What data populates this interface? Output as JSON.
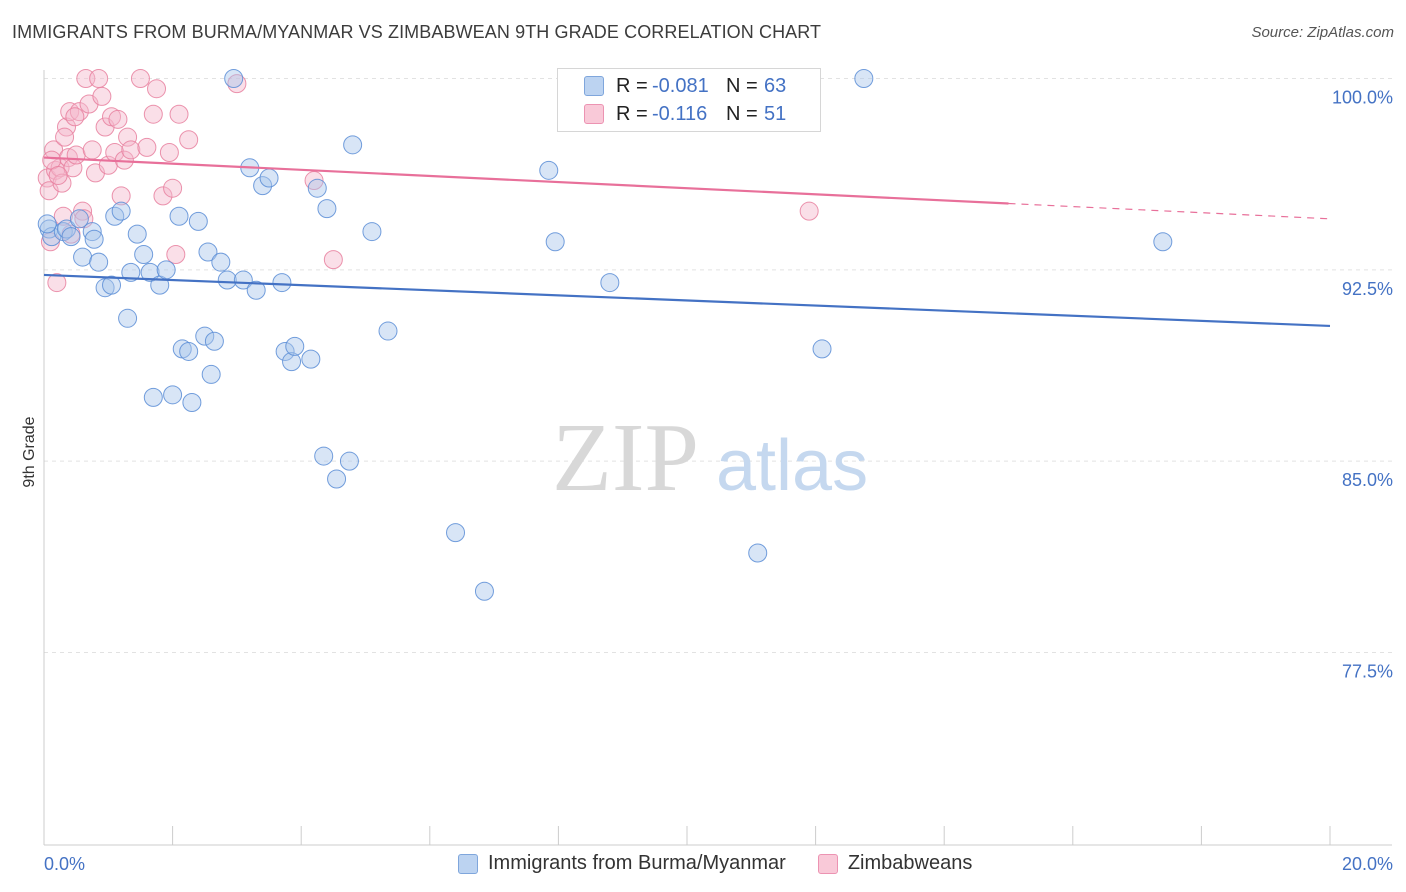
{
  "title": "IMMIGRANTS FROM BURMA/MYANMAR VS ZIMBABWEAN 9TH GRADE CORRELATION CHART",
  "source": "Source: ZipAtlas.com",
  "watermark": {
    "zip": "ZIP",
    "atlas": "atlas"
  },
  "colors": {
    "blue": "#4472c4",
    "blue_fill": "#a9c6ec",
    "pink": "#e8709a",
    "pink_fill": "#f5b8cc"
  },
  "legend": {
    "r_label": "R =",
    "n_label": "N =",
    "series": [
      {
        "r": "-0.081",
        "n": "63"
      },
      {
        "r": "-0.116",
        "n": "51"
      }
    ]
  },
  "chart_data": {
    "type": "scatter",
    "title": "IMMIGRANTS FROM BURMA/MYANMAR VS ZIMBABWEAN 9TH GRADE CORRELATION CHART",
    "xlabel": "",
    "ylabel": "9th Grade",
    "xlim": [
      0.0,
      20.0
    ],
    "ylim": [
      70.0,
      101.0
    ],
    "x_tick_labels": [
      "0.0%",
      "20.0%"
    ],
    "y_ticks": [
      77.5,
      85.0,
      92.5,
      100.0
    ],
    "y_tick_labels": [
      "77.5%",
      "85.0%",
      "92.5%",
      "100.0%"
    ],
    "grid": true,
    "series": [
      {
        "name": "Immigrants from Burma/Myanmar",
        "color": "blue",
        "trend": {
          "x": [
            0.0,
            20.0
          ],
          "y": [
            92.3,
            90.3
          ],
          "dashed_from": null
        },
        "points": [
          [
            0.08,
            94.1
          ],
          [
            0.12,
            93.8
          ],
          [
            0.3,
            94.0
          ],
          [
            0.35,
            94.1
          ],
          [
            0.42,
            93.8
          ],
          [
            0.55,
            94.5
          ],
          [
            0.6,
            93.0
          ],
          [
            0.75,
            94.0
          ],
          [
            0.78,
            93.7
          ],
          [
            0.85,
            92.8
          ],
          [
            0.95,
            91.8
          ],
          [
            1.05,
            91.9
          ],
          [
            1.1,
            94.6
          ],
          [
            1.2,
            94.8
          ],
          [
            1.3,
            90.6
          ],
          [
            1.35,
            92.4
          ],
          [
            1.45,
            93.9
          ],
          [
            1.55,
            93.1
          ],
          [
            1.65,
            92.4
          ],
          [
            1.7,
            87.5
          ],
          [
            1.8,
            91.9
          ],
          [
            1.9,
            92.5
          ],
          [
            2.0,
            87.6
          ],
          [
            2.1,
            94.6
          ],
          [
            2.15,
            89.4
          ],
          [
            2.25,
            89.3
          ],
          [
            2.3,
            87.3
          ],
          [
            2.4,
            94.4
          ],
          [
            2.5,
            89.9
          ],
          [
            2.55,
            93.2
          ],
          [
            2.6,
            88.4
          ],
          [
            2.65,
            89.7
          ],
          [
            2.75,
            92.8
          ],
          [
            2.85,
            92.1
          ],
          [
            2.95,
            100.0
          ],
          [
            3.1,
            92.1
          ],
          [
            3.2,
            96.5
          ],
          [
            3.3,
            91.7
          ],
          [
            3.4,
            95.8
          ],
          [
            3.5,
            96.1
          ],
          [
            3.7,
            92.0
          ],
          [
            3.75,
            89.3
          ],
          [
            3.85,
            88.9
          ],
          [
            3.9,
            89.5
          ],
          [
            4.15,
            89.0
          ],
          [
            4.25,
            95.7
          ],
          [
            4.35,
            85.2
          ],
          [
            4.4,
            94.9
          ],
          [
            4.55,
            84.3
          ],
          [
            4.75,
            85.0
          ],
          [
            4.8,
            97.4
          ],
          [
            5.1,
            94.0
          ],
          [
            5.35,
            90.1
          ],
          [
            6.4,
            82.2
          ],
          [
            6.85,
            79.9
          ],
          [
            7.85,
            96.4
          ],
          [
            7.95,
            93.6
          ],
          [
            8.8,
            92.0
          ],
          [
            11.1,
            81.4
          ],
          [
            12.1,
            89.4
          ],
          [
            12.75,
            100.0
          ],
          [
            17.4,
            93.6
          ],
          [
            0.05,
            94.3
          ]
        ]
      },
      {
        "name": "Zimbabweans",
        "color": "pink",
        "trend": {
          "x": [
            0.0,
            20.0
          ],
          "y": [
            96.9,
            94.5
          ],
          "dashed_from": 15.0
        },
        "points": [
          [
            0.05,
            96.1
          ],
          [
            0.08,
            95.6
          ],
          [
            0.1,
            93.6
          ],
          [
            0.15,
            97.2
          ],
          [
            0.18,
            96.4
          ],
          [
            0.2,
            92.0
          ],
          [
            0.25,
            96.5
          ],
          [
            0.28,
            95.9
          ],
          [
            0.3,
            94.6
          ],
          [
            0.35,
            98.1
          ],
          [
            0.38,
            96.9
          ],
          [
            0.4,
            98.7
          ],
          [
            0.42,
            93.9
          ],
          [
            0.45,
            96.5
          ],
          [
            0.5,
            97.0
          ],
          [
            0.55,
            98.7
          ],
          [
            0.6,
            94.8
          ],
          [
            0.65,
            100.0
          ],
          [
            0.7,
            99.0
          ],
          [
            0.75,
            97.2
          ],
          [
            0.8,
            96.3
          ],
          [
            0.85,
            100.0
          ],
          [
            0.9,
            99.3
          ],
          [
            0.95,
            98.1
          ],
          [
            1.0,
            96.6
          ],
          [
            1.05,
            98.5
          ],
          [
            1.1,
            97.1
          ],
          [
            1.15,
            98.4
          ],
          [
            1.2,
            95.4
          ],
          [
            1.25,
            96.8
          ],
          [
            1.3,
            97.7
          ],
          [
            1.35,
            97.2
          ],
          [
            1.5,
            100.0
          ],
          [
            1.6,
            97.3
          ],
          [
            1.7,
            98.6
          ],
          [
            1.75,
            99.6
          ],
          [
            1.85,
            95.4
          ],
          [
            1.95,
            97.1
          ],
          [
            2.0,
            95.7
          ],
          [
            2.05,
            93.1
          ],
          [
            2.1,
            98.6
          ],
          [
            2.25,
            97.6
          ],
          [
            3.0,
            99.8
          ],
          [
            4.2,
            96.0
          ],
          [
            4.5,
            92.9
          ],
          [
            11.9,
            94.8
          ],
          [
            0.12,
            96.8
          ],
          [
            0.22,
            96.2
          ],
          [
            0.32,
            97.7
          ],
          [
            0.48,
            98.5
          ],
          [
            0.62,
            94.5
          ]
        ]
      }
    ]
  },
  "bottom_legend": [
    "Immigrants from Burma/Myanmar",
    "Zimbabweans"
  ]
}
